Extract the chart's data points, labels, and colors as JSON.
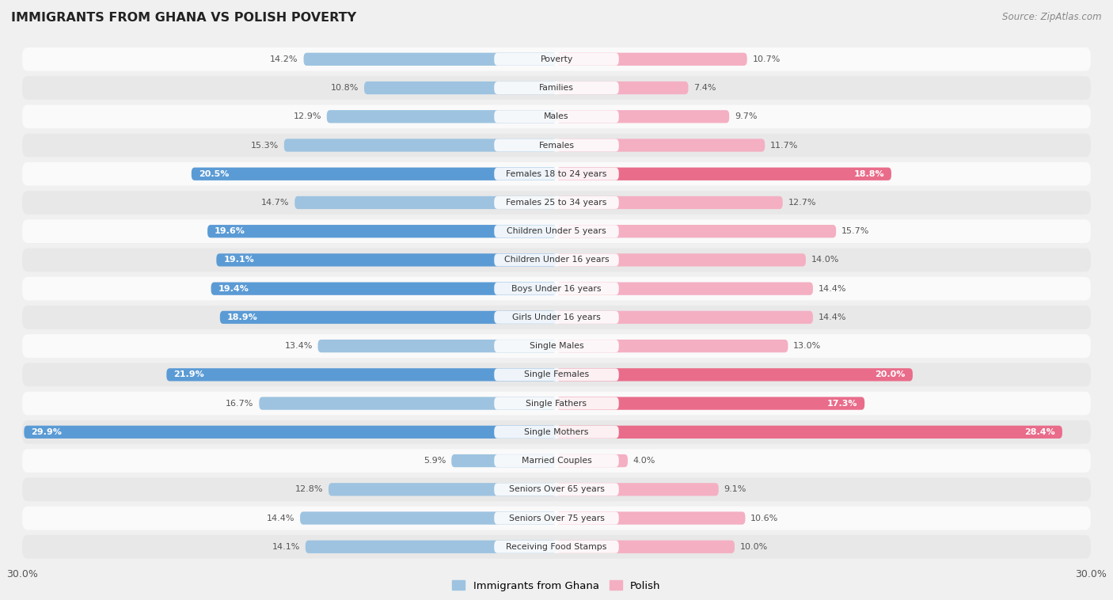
{
  "title": "IMMIGRANTS FROM GHANA VS POLISH POVERTY",
  "source": "Source: ZipAtlas.com",
  "categories": [
    "Poverty",
    "Families",
    "Males",
    "Females",
    "Females 18 to 24 years",
    "Females 25 to 34 years",
    "Children Under 5 years",
    "Children Under 16 years",
    "Boys Under 16 years",
    "Girls Under 16 years",
    "Single Males",
    "Single Females",
    "Single Fathers",
    "Single Mothers",
    "Married Couples",
    "Seniors Over 65 years",
    "Seniors Over 75 years",
    "Receiving Food Stamps"
  ],
  "ghana_values": [
    14.2,
    10.8,
    12.9,
    15.3,
    20.5,
    14.7,
    19.6,
    19.1,
    19.4,
    18.9,
    13.4,
    21.9,
    16.7,
    29.9,
    5.9,
    12.8,
    14.4,
    14.1
  ],
  "polish_values": [
    10.7,
    7.4,
    9.7,
    11.7,
    18.8,
    12.7,
    15.7,
    14.0,
    14.4,
    14.4,
    13.0,
    20.0,
    17.3,
    28.4,
    4.0,
    9.1,
    10.6,
    10.0
  ],
  "ghana_highlight": [
    false,
    false,
    false,
    false,
    true,
    false,
    true,
    true,
    true,
    true,
    false,
    true,
    false,
    true,
    false,
    false,
    false,
    false
  ],
  "polish_highlight": [
    false,
    false,
    false,
    false,
    true,
    false,
    false,
    false,
    false,
    false,
    false,
    true,
    true,
    true,
    false,
    false,
    false,
    false
  ],
  "ghana_color": "#9dc3e0",
  "polish_color": "#f4afc3",
  "ghana_highlight_color": "#5b9bd5",
  "polish_highlight_color": "#e96c8a",
  "background_color": "#f0f0f0",
  "row_color_light": "#fafafa",
  "row_color_dark": "#e8e8e8",
  "max_value": 30.0,
  "legend_ghana": "Immigrants from Ghana",
  "legend_polish": "Polish",
  "center_label_bg": "#ffffff"
}
